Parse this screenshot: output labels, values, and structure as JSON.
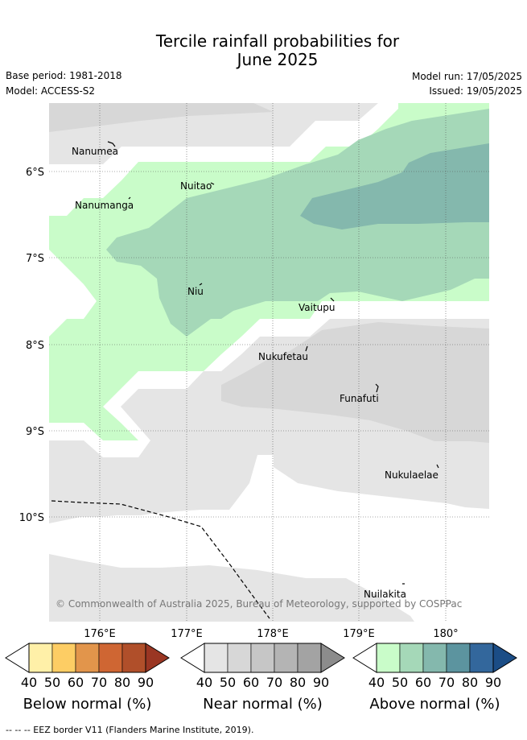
{
  "title_line1": "Tercile rainfall probabilities for",
  "title_line2": "June 2025",
  "base_period": "Base period: 1981-2018",
  "model": "Model: ACCESS-S2",
  "model_run": "Model run: 17/05/2025",
  "issued": "Issued: 19/05/2025",
  "lat_ticks": [
    "6°S",
    "7°S",
    "8°S",
    "9°S",
    "10°S"
  ],
  "lon_ticks": [
    "176°E",
    "177°E",
    "178°E",
    "179°E",
    "180°"
  ],
  "islands": [
    "Nanumea",
    "Nuitao",
    "Nanumanga",
    "Niu",
    "Vaitupu",
    "Nukufetau",
    "Funafuti",
    "Nukulaelae",
    "Nuilakita"
  ],
  "copyright": "© Commonwealth of Australia 2025, Bureau of Meteorology, supported by COSPPac",
  "legend": {
    "below": {
      "title": "Below normal (%)",
      "ticks": [
        "40",
        "50",
        "60",
        "70",
        "80",
        "90"
      ],
      "colors": [
        "#fff0a8",
        "#fdcd64",
        "#e2954b",
        "#cf6633",
        "#b04f2a",
        "#9a3623"
      ]
    },
    "near": {
      "title": "Near normal (%)",
      "ticks": [
        "40",
        "50",
        "60",
        "70",
        "80",
        "90"
      ],
      "colors": [
        "#e5e5e5",
        "#d7d7d7",
        "#c6c6c6",
        "#b4b4b4",
        "#a3a3a3",
        "#8c8c8c"
      ]
    },
    "above": {
      "title": "Above normal (%)",
      "ticks": [
        "40",
        "50",
        "60",
        "70",
        "80",
        "90"
      ],
      "colors": [
        "#c9fcc9",
        "#a5d8b8",
        "#84b8ad",
        "#5c949f",
        "#33679c",
        "#1b4d86"
      ]
    }
  },
  "footer": "--  --  -- EEZ border V11 (Flanders Marine Institute, 2019)."
}
